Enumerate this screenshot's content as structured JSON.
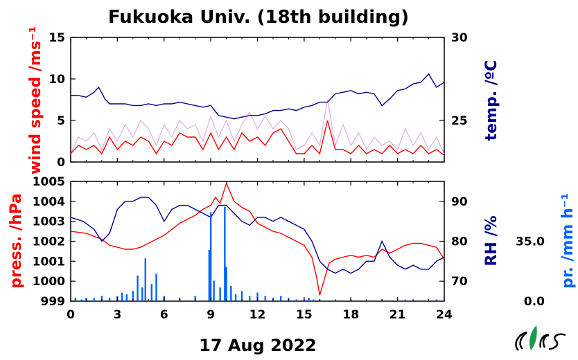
{
  "title": "Fukuoka Univ. (18th building)",
  "date_label": "17 Aug 2022",
  "colors": {
    "wind": "#ff0000",
    "wind_raw": "#dca0dc",
    "temp": "#00008b",
    "pressure": "#ff0000",
    "rh": "#00008b",
    "precip": "#0064ff",
    "logo_green": "#1a9a4a"
  },
  "chart_data": [
    {
      "type": "line",
      "title": "Fukuoka Univ. (18th building)",
      "xlabel": "",
      "x_ticks": [
        "0",
        "3",
        "6",
        "9",
        "12",
        "15",
        "18",
        "21",
        "24"
      ],
      "xlim": [
        0,
        24
      ],
      "left_axis": {
        "label": "wind speed /ms⁻¹",
        "ylim": [
          0,
          15
        ],
        "ticks": [
          "0",
          "5",
          "10",
          "15"
        ]
      },
      "right_axis": {
        "label": "temp. /ºC",
        "ylim": [
          22.5,
          30
        ],
        "ticks": [
          "25",
          "30"
        ]
      },
      "series": [
        {
          "axis": "left",
          "color": "#dca0dc",
          "x": [
            0,
            0.5,
            1,
            1.5,
            2,
            2.5,
            3,
            3.5,
            4,
            4.5,
            5,
            5.5,
            6,
            6.5,
            7,
            7.5,
            8,
            8.5,
            9,
            9.5,
            10,
            10.5,
            11,
            11.5,
            12,
            12.5,
            13,
            13.5,
            14,
            14.5,
            15,
            15.5,
            16,
            16.5,
            17,
            17.5,
            18,
            18.5,
            19,
            19.5,
            20,
            20.5,
            21,
            21.5,
            22,
            22.5,
            23,
            23.5,
            24
          ],
          "values": [
            1.0,
            3.0,
            2.5,
            3.5,
            1.5,
            4.0,
            2.5,
            4.5,
            3.0,
            5.0,
            4.0,
            2.0,
            4.5,
            3.0,
            5.0,
            4.0,
            4.5,
            2.5,
            5.5,
            3.0,
            5.0,
            2.5,
            4.5,
            6.0,
            4.0,
            5.5,
            4.0,
            5.0,
            4.0,
            1.5,
            2.0,
            3.5,
            2.0,
            7.5,
            2.0,
            4.5,
            2.0,
            3.5,
            1.5,
            3.0,
            2.0,
            2.5,
            1.5,
            4.0,
            2.0,
            3.5,
            1.5,
            3.0,
            1.0
          ]
        },
        {
          "axis": "left",
          "color": "#ff0000",
          "x": [
            0,
            0.5,
            1,
            1.5,
            2,
            2.5,
            3,
            3.5,
            4,
            4.5,
            5,
            5.5,
            6,
            6.5,
            7,
            7.5,
            8,
            8.5,
            9,
            9.5,
            10,
            10.5,
            11,
            11.5,
            12,
            12.5,
            13,
            13.5,
            14,
            14.5,
            15,
            15.5,
            16,
            16.5,
            17,
            17.5,
            18,
            18.5,
            19,
            19.5,
            20,
            20.5,
            21,
            21.5,
            22,
            22.5,
            23,
            23.5,
            24
          ],
          "values": [
            1.0,
            2.0,
            1.5,
            2.0,
            1.0,
            3.0,
            1.5,
            2.5,
            2.0,
            3.0,
            2.5,
            1.0,
            2.5,
            2.0,
            3.5,
            3.0,
            3.0,
            1.5,
            3.5,
            1.5,
            3.0,
            1.5,
            3.5,
            2.5,
            3.0,
            2.0,
            3.5,
            4.0,
            2.5,
            1.0,
            1.0,
            2.0,
            1.0,
            5.0,
            1.5,
            1.5,
            1.0,
            2.0,
            1.0,
            1.5,
            1.0,
            2.0,
            1.0,
            1.5,
            1.0,
            2.0,
            1.0,
            1.5,
            0.8
          ]
        },
        {
          "axis": "right",
          "color": "#00008b",
          "x": [
            0,
            0.5,
            1,
            1.5,
            1.8,
            2.2,
            2.5,
            3,
            3.5,
            4,
            4.5,
            5,
            5.5,
            6,
            6.5,
            7,
            7.5,
            8,
            8.5,
            9,
            9.5,
            10,
            10.5,
            11,
            11.5,
            12,
            12.5,
            13,
            13.5,
            14,
            14.5,
            15,
            15.5,
            16,
            16.5,
            17,
            17.5,
            18,
            18.5,
            19,
            19.5,
            20,
            20.5,
            21,
            21.5,
            22,
            22.5,
            23,
            23.5,
            24
          ],
          "values": [
            26.5,
            26.5,
            26.4,
            26.7,
            27.0,
            26.3,
            26.0,
            26.0,
            26.0,
            25.9,
            25.9,
            26.0,
            25.9,
            26.0,
            26.0,
            26.1,
            26.0,
            25.9,
            25.8,
            25.9,
            25.3,
            25.2,
            25.1,
            25.2,
            25.3,
            25.3,
            25.4,
            25.6,
            25.6,
            25.7,
            25.6,
            25.8,
            25.9,
            26.1,
            26.1,
            26.6,
            26.7,
            26.8,
            26.6,
            26.7,
            26.6,
            25.9,
            26.3,
            26.8,
            26.9,
            27.2,
            27.3,
            27.8,
            27.0,
            27.3
          ]
        }
      ]
    },
    {
      "type": "line",
      "xlabel": "17 Aug 2022",
      "x_ticks": [
        "0",
        "3",
        "6",
        "9",
        "12",
        "15",
        "18",
        "21",
        "24"
      ],
      "xlim": [
        0,
        24
      ],
      "left_axis": {
        "label": "press. /hPa",
        "ylim": [
          999,
          1005
        ],
        "ticks": [
          "999",
          "1000",
          "1001",
          "1002",
          "1003",
          "1004",
          "1005"
        ]
      },
      "right_axis": {
        "label": "RH /%",
        "ylim": [
          65,
          95
        ],
        "ticks": [
          "70",
          "80",
          "90"
        ]
      },
      "far_right_axis": {
        "label": "pr. /mm h⁻¹",
        "ylim": [
          0,
          70
        ],
        "ticks": [
          "0.0",
          "35.0"
        ]
      },
      "series": [
        {
          "axis": "left",
          "color": "#ff0000",
          "x": [
            0,
            1,
            2,
            2.5,
            3,
            3.5,
            4,
            4.5,
            5,
            5.5,
            6,
            6.5,
            7,
            7.5,
            8,
            8.5,
            9,
            9.3,
            9.6,
            10,
            10.5,
            11,
            11.5,
            12,
            12.5,
            13,
            13.5,
            14,
            14.5,
            15,
            15.5,
            15.8,
            16,
            16.3,
            16.6,
            17,
            17.5,
            18,
            18.5,
            19,
            19.5,
            20,
            20.5,
            21,
            21.5,
            22,
            22.5,
            23,
            23.5,
            24
          ],
          "values": [
            1002.5,
            1002.4,
            1002.1,
            1001.8,
            1001.7,
            1001.6,
            1001.6,
            1001.7,
            1001.9,
            1002.1,
            1002.3,
            1002.6,
            1002.9,
            1003.1,
            1003.3,
            1003.6,
            1003.8,
            1004.2,
            1003.9,
            1004.9,
            1004.0,
            1003.7,
            1003.5,
            1002.9,
            1002.7,
            1002.5,
            1002.4,
            1002.2,
            1002.0,
            1001.8,
            1001.2,
            1000.2,
            999.3,
            1000.1,
            1000.9,
            1001.1,
            1001.2,
            1001.3,
            1001.2,
            1001.3,
            1001.2,
            1001.6,
            1001.4,
            1001.6,
            1001.8,
            1001.9,
            1001.9,
            1001.8,
            1001.7,
            1001.1
          ]
        },
        {
          "axis": "right",
          "color": "#00008b",
          "x": [
            0,
            0.8,
            1.5,
            2,
            2.5,
            3,
            3.5,
            4,
            4.5,
            5,
            5.5,
            6,
            6.5,
            7,
            7.5,
            8,
            8.5,
            9,
            9.5,
            10,
            10.5,
            11,
            11.5,
            12,
            12.5,
            13,
            13.5,
            14,
            14.5,
            15,
            15.5,
            16,
            16.5,
            17,
            17.5,
            18,
            18.5,
            19,
            19.5,
            20,
            20.5,
            21,
            21.5,
            22,
            22.5,
            23,
            23.5,
            24
          ],
          "values": [
            86,
            85,
            83,
            80,
            82,
            88,
            90,
            90,
            91,
            91,
            89,
            85,
            88,
            89,
            89,
            88,
            87,
            86,
            89,
            89,
            87,
            85,
            84,
            86,
            86,
            85,
            86,
            85,
            84,
            83,
            80,
            75,
            73,
            72,
            73,
            72,
            73,
            75,
            75,
            80,
            76,
            74,
            73,
            74,
            73,
            73,
            75,
            76
          ]
        },
        {
          "axis": "far_right",
          "type": "bar",
          "color": "#0064ff",
          "x": [
            0.3,
            0.7,
            1.0,
            1.5,
            2.0,
            2.5,
            3.0,
            3.3,
            3.6,
            4.0,
            4.3,
            4.6,
            4.8,
            5.2,
            5.5,
            6.0,
            7.0,
            8.0,
            8.9,
            9.0,
            9.2,
            9.6,
            9.9,
            10.0,
            10.3,
            10.6,
            11.0,
            11.5,
            12.0,
            12.5,
            13.0,
            13.5,
            14.0,
            14.5,
            15.0,
            15.3,
            15.6,
            16.0,
            18.0,
            20.0,
            21.5,
            23.5
          ],
          "values": [
            2,
            1,
            2,
            2,
            3,
            2,
            3,
            5,
            4,
            6,
            15,
            8,
            25,
            10,
            16,
            3,
            2,
            3,
            30,
            52,
            12,
            8,
            55,
            20,
            9,
            4,
            6,
            3,
            5,
            3,
            2,
            3,
            2,
            1,
            1,
            2,
            1,
            1,
            1,
            1,
            1,
            1
          ]
        }
      ]
    }
  ]
}
